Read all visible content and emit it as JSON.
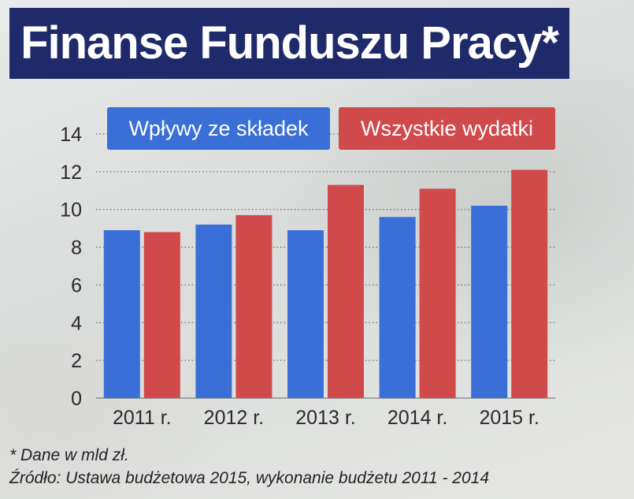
{
  "title": "Finanse Funduszu Pracy*",
  "colors": {
    "title_bg": "#1f2a6b",
    "series_1": "#3a6fd8",
    "series_2": "#d04a4c"
  },
  "legend": [
    "Wpływy ze składek",
    "Wszystkie wydatki"
  ],
  "notes": {
    "units": "* Dane w mld zł.",
    "source": "Źródło: Ustawa budżetowa 2015, wykonanie budżetu 2011 - 2014"
  },
  "chart_data": {
    "type": "bar",
    "categories": [
      "2011 r.",
      "2012 r.",
      "2013 r.",
      "2014 r.",
      "2015 r."
    ],
    "series": [
      {
        "name": "Wpływy ze składek",
        "values": [
          8.9,
          9.2,
          8.9,
          9.6,
          10.2
        ]
      },
      {
        "name": "Wszystkie wydatki",
        "values": [
          8.8,
          9.7,
          11.3,
          11.1,
          12.1
        ]
      }
    ],
    "ylim": [
      0,
      14
    ],
    "yticks": [
      0,
      2,
      4,
      6,
      8,
      10,
      12,
      14
    ],
    "grid": "horizontal-dotted",
    "legend_position": "top"
  }
}
